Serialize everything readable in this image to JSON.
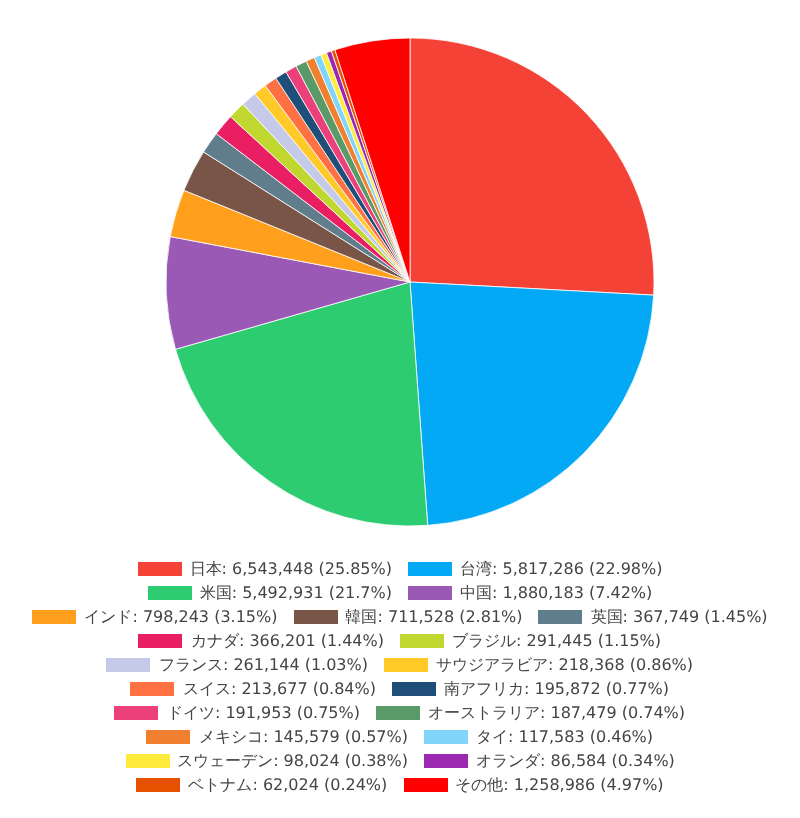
{
  "chart_data": {
    "type": "pie",
    "categories": [
      "日本",
      "台湾",
      "米国",
      "中国",
      "インド",
      "韓国",
      "英国",
      "カナダ",
      "ブラジル",
      "フランス",
      "サウジアラビア",
      "スイス",
      "南アフリカ",
      "ドイツ",
      "オーストラリア",
      "メキシコ",
      "タイ",
      "スウェーデン",
      "オランダ",
      "ベトナム",
      "その他"
    ],
    "values": [
      6543448,
      5817286,
      5492931,
      1880183,
      798243,
      711528,
      367749,
      366201,
      291445,
      261144,
      218368,
      213677,
      195872,
      191953,
      187479,
      145579,
      117583,
      98024,
      86584,
      62024,
      1258986
    ],
    "value_labels": [
      "6,543,448 (25.85%)",
      "5,817,286 (22.98%)",
      "5,492,931 (21.7%)",
      "1,880,183 (7.42%)",
      "798,243 (3.15%)",
      "711,528 (2.81%)",
      "367,749 (1.45%)",
      "366,201 (1.44%)",
      "291,445 (1.15%)",
      "261,144 (1.03%)",
      "218,368 (0.86%)",
      "213,677 (0.84%)",
      "195,872 (0.77%)",
      "191,953 (0.75%)",
      "187,479 (0.74%)",
      "145,579 (0.57%)",
      "117,583 (0.46%)",
      "98,024 (0.38%)",
      "86,584 (0.34%)",
      "62,024 (0.24%)",
      "1,258,986 (4.97%)"
    ],
    "colors": [
      "#f44336",
      "#03a9f4",
      "#2ecc71",
      "#9b59b6",
      "#ff9f1c",
      "#795548",
      "#607d8b",
      "#e91e63",
      "#c0d72f",
      "#c5cae9",
      "#ffca28",
      "#ff7043",
      "#1f4e79",
      "#ec407a",
      "#5a9a68",
      "#f08030",
      "#81d4fa",
      "#ffeb3b",
      "#9c27b0",
      "#e65100",
      "#ff0000"
    ],
    "legend": "bottom"
  }
}
